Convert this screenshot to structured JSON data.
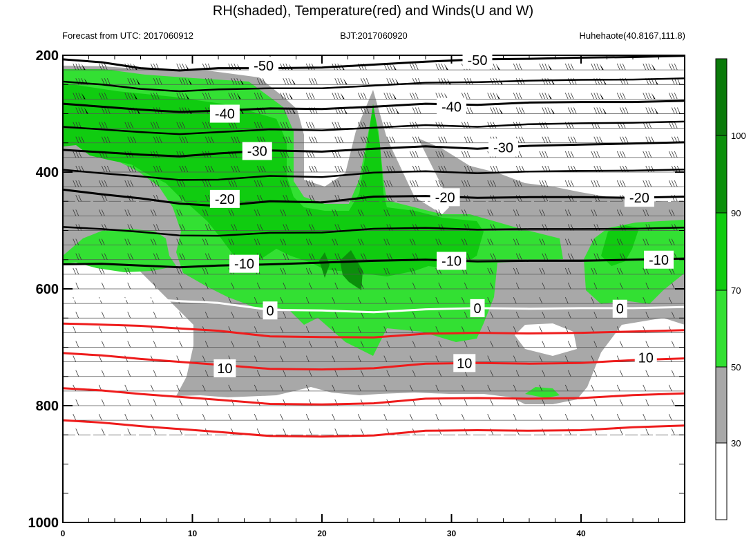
{
  "title": "RH(shaded), Temperature(red) and Winds(U and W)",
  "subtitle_left": "Forecast from UTC: 2017060912",
  "subtitle_center": "BJT:2017060920",
  "subtitle_right": "Huhehaote(40.8167,111.8)",
  "colors": {
    "rh_30_50": "#a8a8a8",
    "rh_50_70": "#33e033",
    "rh_70_90": "#10cc10",
    "rh_90_100": "#0b8f0b",
    "rh_100": "#0a7a0a",
    "temperature_warm": "#ee1c1c",
    "temperature_zero": "#ffffff",
    "temperature_cold": "#000000"
  },
  "chart_data": {
    "type": "heatmap",
    "x_ticks": [
      "0",
      "10",
      "20",
      "30",
      "40"
    ],
    "y_ticks": [
      "200",
      "400",
      "600",
      "800",
      "1000"
    ],
    "xlim": [
      0,
      48
    ],
    "ylim": [
      1000,
      200
    ],
    "y_scale": "linear (inverted, pressure hPa)",
    "colorbar": {
      "ticks": [
        "30",
        "50",
        "70",
        "90",
        "100"
      ],
      "levels": [
        30,
        50,
        70,
        90,
        100
      ],
      "colors": [
        "#ffffff",
        "#a8a8a8",
        "#33e033",
        "#10cc10",
        "#0b8f0b",
        "#0a7a0a"
      ]
    },
    "temperature_contours": [
      {
        "level": -50,
        "label": "-50",
        "color": "black",
        "points": [
          [
            0,
            207
          ],
          [
            3,
            212
          ],
          [
            6,
            222
          ],
          [
            9,
            226
          ],
          [
            12,
            222
          ],
          [
            16,
            222
          ],
          [
            20,
            221
          ],
          [
            24,
            216
          ],
          [
            28,
            211
          ],
          [
            32,
            207
          ],
          [
            36,
            206
          ],
          [
            40,
            204
          ],
          [
            44,
            203
          ],
          [
            48,
            201
          ]
        ]
      },
      {
        "level": -40,
        "label": "-40",
        "color": "black",
        "points": [
          [
            0,
            283
          ],
          [
            3,
            288
          ],
          [
            6,
            293
          ],
          [
            9,
            297
          ],
          [
            12,
            295
          ],
          [
            16,
            291
          ],
          [
            20,
            292
          ],
          [
            24,
            288
          ],
          [
            28,
            283
          ],
          [
            32,
            285
          ],
          [
            36,
            281
          ],
          [
            40,
            280
          ],
          [
            44,
            280
          ],
          [
            48,
            278
          ]
        ]
      },
      {
        "level": -30,
        "label": "-30",
        "color": "black",
        "points": [
          [
            0,
            362
          ],
          [
            3,
            366
          ],
          [
            6,
            370
          ],
          [
            9,
            373
          ],
          [
            12,
            368
          ],
          [
            16,
            363
          ],
          [
            20,
            365
          ],
          [
            24,
            360
          ],
          [
            28,
            356
          ],
          [
            32,
            360
          ],
          [
            36,
            355
          ],
          [
            40,
            353
          ],
          [
            44,
            351
          ],
          [
            48,
            349
          ]
        ]
      },
      {
        "level": -20,
        "label": "-20",
        "color": "black",
        "points": [
          [
            0,
            430
          ],
          [
            3,
            438
          ],
          [
            6,
            445
          ],
          [
            9,
            454
          ],
          [
            12,
            458
          ],
          [
            16,
            450
          ],
          [
            20,
            452
          ],
          [
            24,
            442
          ],
          [
            28,
            441
          ],
          [
            32,
            444
          ],
          [
            36,
            443
          ],
          [
            40,
            443
          ],
          [
            44,
            444
          ],
          [
            48,
            442
          ]
        ]
      },
      {
        "level": -10,
        "label": "-10",
        "color": "black",
        "points": [
          [
            0,
            558
          ],
          [
            3,
            557
          ],
          [
            6,
            560
          ],
          [
            9,
            563
          ],
          [
            12,
            560
          ],
          [
            16,
            558
          ],
          [
            20,
            555
          ],
          [
            24,
            552
          ],
          [
            28,
            550
          ],
          [
            32,
            553
          ],
          [
            36,
            552
          ],
          [
            40,
            552
          ],
          [
            44,
            550
          ],
          [
            48,
            548
          ]
        ]
      },
      {
        "level": 0,
        "label": "0",
        "color": "white",
        "points": [
          [
            0,
            618
          ],
          [
            3,
            618
          ],
          [
            6,
            617
          ],
          [
            9,
            621
          ],
          [
            12,
            624
          ],
          [
            16,
            636
          ],
          [
            20,
            637
          ],
          [
            24,
            640
          ],
          [
            28,
            635
          ],
          [
            32,
            633
          ],
          [
            36,
            634
          ],
          [
            40,
            633
          ],
          [
            44,
            633
          ],
          [
            48,
            631
          ]
        ]
      },
      {
        "level": 10,
        "label": "10",
        "color": "red",
        "points": [
          [
            0,
            710
          ],
          [
            3,
            714
          ],
          [
            6,
            720
          ],
          [
            9,
            725
          ],
          [
            12,
            730
          ],
          [
            16,
            737
          ],
          [
            20,
            738
          ],
          [
            24,
            736
          ],
          [
            28,
            728
          ],
          [
            32,
            727
          ],
          [
            36,
            728
          ],
          [
            40,
            727
          ],
          [
            44,
            722
          ],
          [
            48,
            719
          ]
        ]
      }
    ],
    "rh_percent_range": [
      0,
      100
    ],
    "series": [
      {
        "name": "RH",
        "values": []
      },
      {
        "name": "Temperature",
        "values": []
      },
      {
        "name": "Winds",
        "values": []
      }
    ]
  }
}
